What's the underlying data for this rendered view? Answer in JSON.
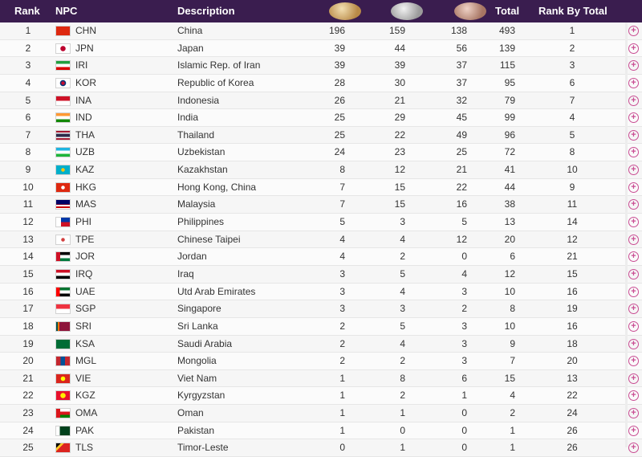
{
  "headers": {
    "rank": "Rank",
    "npc": "NPC",
    "description": "Description",
    "gold_icon": "gold-medal-icon",
    "silver_icon": "silver-medal-icon",
    "bronze_icon": "bronze-medal-icon",
    "total": "Total",
    "rank_by_total": "Rank By Total"
  },
  "colors": {
    "header_bg": "#3a1d4f",
    "expand_icon": "#c94d93",
    "gold": "#d4a566",
    "silver": "#bfbfbf",
    "bronze": "#c49a8c"
  },
  "rows": [
    {
      "rank": "1",
      "npc": "CHN",
      "desc": "China",
      "gold": "196",
      "silver": "159",
      "bronze": "138",
      "total": "493",
      "rbt": "1"
    },
    {
      "rank": "2",
      "npc": "JPN",
      "desc": "Japan",
      "gold": "39",
      "silver": "44",
      "bronze": "56",
      "total": "139",
      "rbt": "2"
    },
    {
      "rank": "3",
      "npc": "IRI",
      "desc": "Islamic Rep. of Iran",
      "gold": "39",
      "silver": "39",
      "bronze": "37",
      "total": "115",
      "rbt": "3"
    },
    {
      "rank": "4",
      "npc": "KOR",
      "desc": "Republic of Korea",
      "gold": "28",
      "silver": "30",
      "bronze": "37",
      "total": "95",
      "rbt": "6"
    },
    {
      "rank": "5",
      "npc": "INA",
      "desc": "Indonesia",
      "gold": "26",
      "silver": "21",
      "bronze": "32",
      "total": "79",
      "rbt": "7"
    },
    {
      "rank": "6",
      "npc": "IND",
      "desc": "India",
      "gold": "25",
      "silver": "29",
      "bronze": "45",
      "total": "99",
      "rbt": "4"
    },
    {
      "rank": "7",
      "npc": "THA",
      "desc": "Thailand",
      "gold": "25",
      "silver": "22",
      "bronze": "49",
      "total": "96",
      "rbt": "5"
    },
    {
      "rank": "8",
      "npc": "UZB",
      "desc": "Uzbekistan",
      "gold": "24",
      "silver": "23",
      "bronze": "25",
      "total": "72",
      "rbt": "8"
    },
    {
      "rank": "9",
      "npc": "KAZ",
      "desc": "Kazakhstan",
      "gold": "8",
      "silver": "12",
      "bronze": "21",
      "total": "41",
      "rbt": "10"
    },
    {
      "rank": "10",
      "npc": "HKG",
      "desc": "Hong Kong, China",
      "gold": "7",
      "silver": "15",
      "bronze": "22",
      "total": "44",
      "rbt": "9"
    },
    {
      "rank": "11",
      "npc": "MAS",
      "desc": "Malaysia",
      "gold": "7",
      "silver": "15",
      "bronze": "16",
      "total": "38",
      "rbt": "11"
    },
    {
      "rank": "12",
      "npc": "PHI",
      "desc": "Philippines",
      "gold": "5",
      "silver": "3",
      "bronze": "5",
      "total": "13",
      "rbt": "14"
    },
    {
      "rank": "13",
      "npc": "TPE",
      "desc": "Chinese Taipei",
      "gold": "4",
      "silver": "4",
      "bronze": "12",
      "total": "20",
      "rbt": "12"
    },
    {
      "rank": "14",
      "npc": "JOR",
      "desc": "Jordan",
      "gold": "4",
      "silver": "2",
      "bronze": "0",
      "total": "6",
      "rbt": "21"
    },
    {
      "rank": "15",
      "npc": "IRQ",
      "desc": "Iraq",
      "gold": "3",
      "silver": "5",
      "bronze": "4",
      "total": "12",
      "rbt": "15"
    },
    {
      "rank": "16",
      "npc": "UAE",
      "desc": "Utd Arab Emirates",
      "gold": "3",
      "silver": "4",
      "bronze": "3",
      "total": "10",
      "rbt": "16"
    },
    {
      "rank": "17",
      "npc": "SGP",
      "desc": "Singapore",
      "gold": "3",
      "silver": "3",
      "bronze": "2",
      "total": "8",
      "rbt": "19"
    },
    {
      "rank": "18",
      "npc": "SRI",
      "desc": "Sri Lanka",
      "gold": "2",
      "silver": "5",
      "bronze": "3",
      "total": "10",
      "rbt": "16"
    },
    {
      "rank": "19",
      "npc": "KSA",
      "desc": "Saudi Arabia",
      "gold": "2",
      "silver": "4",
      "bronze": "3",
      "total": "9",
      "rbt": "18"
    },
    {
      "rank": "20",
      "npc": "MGL",
      "desc": "Mongolia",
      "gold": "2",
      "silver": "2",
      "bronze": "3",
      "total": "7",
      "rbt": "20"
    },
    {
      "rank": "21",
      "npc": "VIE",
      "desc": "Viet Nam",
      "gold": "1",
      "silver": "8",
      "bronze": "6",
      "total": "15",
      "rbt": "13"
    },
    {
      "rank": "22",
      "npc": "KGZ",
      "desc": "Kyrgyzstan",
      "gold": "1",
      "silver": "2",
      "bronze": "1",
      "total": "4",
      "rbt": "22"
    },
    {
      "rank": "23",
      "npc": "OMA",
      "desc": "Oman",
      "gold": "1",
      "silver": "1",
      "bronze": "0",
      "total": "2",
      "rbt": "24"
    },
    {
      "rank": "24",
      "npc": "PAK",
      "desc": "Pakistan",
      "gold": "1",
      "silver": "0",
      "bronze": "0",
      "total": "1",
      "rbt": "26"
    },
    {
      "rank": "25",
      "npc": "TLS",
      "desc": "Timor-Leste",
      "gold": "0",
      "silver": "1",
      "bronze": "0",
      "total": "1",
      "rbt": "26"
    }
  ]
}
